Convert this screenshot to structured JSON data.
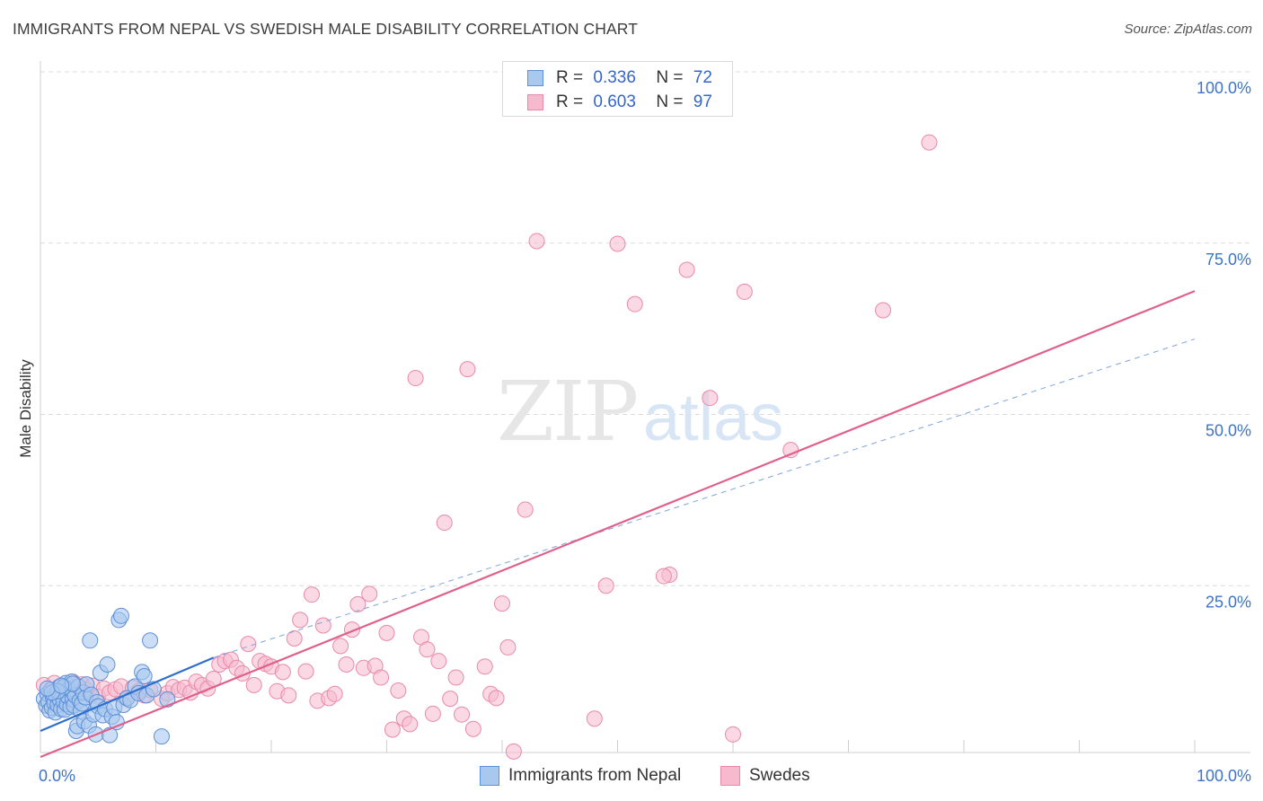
{
  "title": "IMMIGRANTS FROM NEPAL VS SWEDISH MALE DISABILITY CORRELATION CHART",
  "source": "Source: ZipAtlas.com",
  "watermark": {
    "zip": "ZIP",
    "atlas": "atlas"
  },
  "legend_top": {
    "rows": [
      {
        "r_label": "R =",
        "r_value": "0.336",
        "n_label": "N =",
        "n_value": "72"
      },
      {
        "r_label": "R =",
        "r_value": "0.603",
        "n_label": "N =",
        "n_value": "97"
      }
    ]
  },
  "legend_bottom": {
    "nepal": "Immigrants from Nepal",
    "swedes": "Swedes"
  },
  "colors": {
    "nepal_fill": "#a9c8ee",
    "nepal_stroke": "#5d8fd8",
    "nepal_line": "#2e6fcc",
    "swedes_fill": "#f7b9ce",
    "swedes_stroke": "#e889a8",
    "swedes_line": "#e0608d",
    "axis_text": "#3d74c5",
    "grid": "#dcdcdc"
  },
  "chart_data": {
    "type": "scatter",
    "title": "IMMIGRANTS FROM NEPAL VS SWEDISH MALE DISABILITY CORRELATION CHART",
    "xlabel": "",
    "ylabel": "Male Disability",
    "xlim": [
      0,
      100
    ],
    "ylim": [
      0,
      100
    ],
    "x_tick_labels": [
      "0.0%",
      "100.0%"
    ],
    "y_ticks": [
      25,
      50,
      75,
      100
    ],
    "y_tick_labels": [
      "25.0%",
      "50.0%",
      "75.0%",
      "100.0%"
    ],
    "grid": true,
    "series": [
      {
        "name": "Immigrants from Nepal",
        "R": 0.336,
        "N": 72,
        "trend": {
          "x": [
            0,
            15
          ],
          "y": [
            3.8,
            14.5
          ]
        },
        "trend_extension": {
          "x": [
            15,
            100
          ],
          "y": [
            14.5,
            61
          ]
        },
        "points": [
          [
            0.3,
            8.5
          ],
          [
            0.5,
            7.5
          ],
          [
            0.6,
            9.2
          ],
          [
            0.7,
            8.0
          ],
          [
            0.8,
            6.8
          ],
          [
            0.9,
            9.8
          ],
          [
            1.0,
            7.2
          ],
          [
            1.1,
            8.6
          ],
          [
            1.2,
            7.9
          ],
          [
            1.3,
            6.5
          ],
          [
            1.4,
            8.9
          ],
          [
            1.5,
            7.6
          ],
          [
            1.6,
            10.2
          ],
          [
            1.7,
            8.3
          ],
          [
            1.8,
            7.0
          ],
          [
            1.9,
            9.5
          ],
          [
            2.0,
            8.1
          ],
          [
            2.1,
            6.9
          ],
          [
            2.2,
            10.8
          ],
          [
            2.3,
            7.7
          ],
          [
            2.4,
            8.8
          ],
          [
            2.5,
            9.9
          ],
          [
            2.6,
            7.3
          ],
          [
            2.7,
            11.0
          ],
          [
            2.8,
            8.4
          ],
          [
            2.9,
            7.5
          ],
          [
            3.0,
            9.0
          ],
          [
            3.1,
            3.8
          ],
          [
            3.2,
            4.5
          ],
          [
            3.3,
            10.3
          ],
          [
            3.4,
            8.2
          ],
          [
            3.5,
            6.7
          ],
          [
            3.6,
            7.8
          ],
          [
            3.7,
            9.4
          ],
          [
            3.8,
            5.2
          ],
          [
            3.9,
            8.7
          ],
          [
            4.0,
            10.6
          ],
          [
            4.2,
            4.6
          ],
          [
            4.3,
            17.0
          ],
          [
            4.4,
            9.1
          ],
          [
            4.6,
            6.2
          ],
          [
            4.8,
            3.3
          ],
          [
            4.9,
            8.0
          ],
          [
            5.0,
            7.4
          ],
          [
            5.2,
            12.3
          ],
          [
            5.4,
            6.1
          ],
          [
            5.6,
            7.0
          ],
          [
            5.8,
            13.5
          ],
          [
            6.0,
            3.2
          ],
          [
            6.2,
            5.9
          ],
          [
            6.4,
            7.2
          ],
          [
            6.6,
            5.1
          ],
          [
            6.8,
            20.0
          ],
          [
            7.0,
            20.6
          ],
          [
            7.2,
            7.6
          ],
          [
            7.5,
            8.6
          ],
          [
            7.8,
            8.3
          ],
          [
            8.2,
            10.3
          ],
          [
            8.5,
            9.3
          ],
          [
            8.8,
            12.4
          ],
          [
            9.0,
            11.8
          ],
          [
            9.2,
            9.0
          ],
          [
            9.5,
            17.0
          ],
          [
            9.8,
            9.9
          ],
          [
            10.5,
            3.0
          ],
          [
            11.0,
            8.4
          ],
          [
            2.0,
            10.2
          ],
          [
            1.5,
            9.6
          ],
          [
            2.8,
            10.7
          ],
          [
            1.0,
            9.4
          ],
          [
            0.6,
            10.0
          ],
          [
            1.8,
            10.4
          ]
        ]
      },
      {
        "name": "Swedes",
        "R": 0.603,
        "N": 97,
        "trend": {
          "x": [
            0,
            100
          ],
          "y": [
            0,
            68
          ]
        },
        "points": [
          [
            0.3,
            10.5
          ],
          [
            0.8,
            9.5
          ],
          [
            1.2,
            10.8
          ],
          [
            1.6,
            9.0
          ],
          [
            2.0,
            10.2
          ],
          [
            2.4,
            9.7
          ],
          [
            2.8,
            11.0
          ],
          [
            3.2,
            9.4
          ],
          [
            3.6,
            10.6
          ],
          [
            4.0,
            9.8
          ],
          [
            4.5,
            10.4
          ],
          [
            5.0,
            8.8
          ],
          [
            5.5,
            10.0
          ],
          [
            6.0,
            9.4
          ],
          [
            6.5,
            9.9
          ],
          [
            7.0,
            10.3
          ],
          [
            7.5,
            8.5
          ],
          [
            8.0,
            10.1
          ],
          [
            8.5,
            9.6
          ],
          [
            9.0,
            9.0
          ],
          [
            9.5,
            9.8
          ],
          [
            10.5,
            8.5
          ],
          [
            11.0,
            9.3
          ],
          [
            11.5,
            10.2
          ],
          [
            12.0,
            9.8
          ],
          [
            12.5,
            10.1
          ],
          [
            13.0,
            9.4
          ],
          [
            13.5,
            11.0
          ],
          [
            14.0,
            10.5
          ],
          [
            14.5,
            10.0
          ],
          [
            15.0,
            11.4
          ],
          [
            15.5,
            13.5
          ],
          [
            16.0,
            14.0
          ],
          [
            16.5,
            14.2
          ],
          [
            17.0,
            13.0
          ],
          [
            17.5,
            12.2
          ],
          [
            18.0,
            16.5
          ],
          [
            18.5,
            10.5
          ],
          [
            19.0,
            14.0
          ],
          [
            19.5,
            13.6
          ],
          [
            20.0,
            13.2
          ],
          [
            20.5,
            9.6
          ],
          [
            21.0,
            12.4
          ],
          [
            21.5,
            9.0
          ],
          [
            22.0,
            17.3
          ],
          [
            22.5,
            20.0
          ],
          [
            23.0,
            12.5
          ],
          [
            23.5,
            23.7
          ],
          [
            24.0,
            8.2
          ],
          [
            24.5,
            19.2
          ],
          [
            25.0,
            8.6
          ],
          [
            25.5,
            9.2
          ],
          [
            26.0,
            16.2
          ],
          [
            26.5,
            13.5
          ],
          [
            27.0,
            18.6
          ],
          [
            27.5,
            22.3
          ],
          [
            28.0,
            13.0
          ],
          [
            28.5,
            23.8
          ],
          [
            29.0,
            13.3
          ],
          [
            29.5,
            11.6
          ],
          [
            30.0,
            18.1
          ],
          [
            30.5,
            4.0
          ],
          [
            31.0,
            9.7
          ],
          [
            31.5,
            5.6
          ],
          [
            32.0,
            4.8
          ],
          [
            32.5,
            55.3
          ],
          [
            33.0,
            17.5
          ],
          [
            33.5,
            15.7
          ],
          [
            34.0,
            6.3
          ],
          [
            34.5,
            14.0
          ],
          [
            35.0,
            34.2
          ],
          [
            35.5,
            8.5
          ],
          [
            36.0,
            11.6
          ],
          [
            36.5,
            6.2
          ],
          [
            37.0,
            56.6
          ],
          [
            37.5,
            4.1
          ],
          [
            38.5,
            13.2
          ],
          [
            39.0,
            9.2
          ],
          [
            39.5,
            8.6
          ],
          [
            40.0,
            22.4
          ],
          [
            40.5,
            16.0
          ],
          [
            41.0,
            0.8
          ],
          [
            42.0,
            36.1
          ],
          [
            43.0,
            75.3
          ],
          [
            48.0,
            5.6
          ],
          [
            49.0,
            25.0
          ],
          [
            50.0,
            74.9
          ],
          [
            51.5,
            66.1
          ],
          [
            54.5,
            26.6
          ],
          [
            54.0,
            26.4
          ],
          [
            56.0,
            71.1
          ],
          [
            58.0,
            52.4
          ],
          [
            60.0,
            3.3
          ],
          [
            61.0,
            67.9
          ],
          [
            65.0,
            44.8
          ],
          [
            73.0,
            65.2
          ],
          [
            77.0,
            89.7
          ]
        ]
      }
    ]
  }
}
